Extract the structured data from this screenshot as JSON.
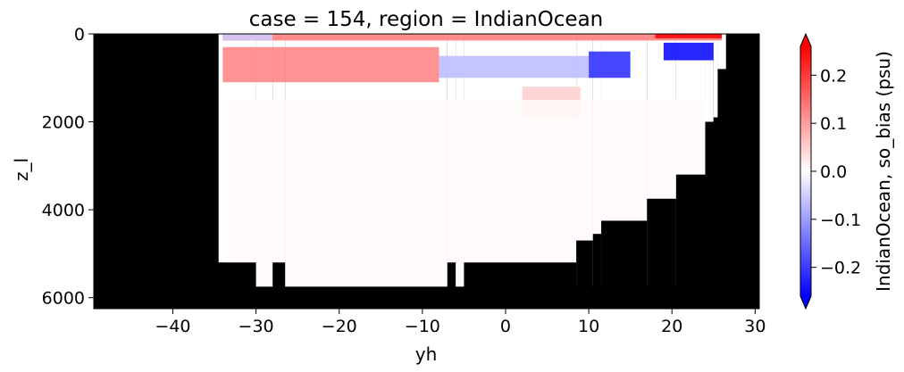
{
  "chart_data": {
    "type": "heatmap",
    "title": "case = 154, region = IndianOcean",
    "xlabel": "yh",
    "ylabel": "z_l",
    "colorbar_label": "IndianOcean, so_bias (psu)",
    "colormap": "bwr",
    "colormap_colors": {
      "low": "#0000ff",
      "mid": "#ffffff",
      "high": "#ff0000",
      "land": "#000000"
    },
    "xlim": [
      -49.5,
      30.5
    ],
    "ylim": [
      6250,
      0
    ],
    "y_inverted": true,
    "vmin": -0.26,
    "vmax": 0.26,
    "colorbar_extend": "both",
    "x_ticks": [
      {
        "value": -40,
        "label": "−40"
      },
      {
        "value": -30,
        "label": "−30"
      },
      {
        "value": -20,
        "label": "−20"
      },
      {
        "value": -10,
        "label": "−10"
      },
      {
        "value": 0,
        "label": "0"
      },
      {
        "value": 10,
        "label": "10"
      },
      {
        "value": 20,
        "label": "20"
      },
      {
        "value": 30,
        "label": "30"
      }
    ],
    "y_ticks": [
      {
        "value": 0,
        "label": "0"
      },
      {
        "value": 2000,
        "label": "2000"
      },
      {
        "value": 4000,
        "label": "4000"
      },
      {
        "value": 6000,
        "label": "6000"
      }
    ],
    "colorbar_ticks": [
      {
        "value": 0.2,
        "label": "0.2"
      },
      {
        "value": 0.1,
        "label": "0.1"
      },
      {
        "value": 0.0,
        "label": "0.0"
      },
      {
        "value": -0.1,
        "label": "−0.1"
      },
      {
        "value": -0.2,
        "label": "−0.2"
      }
    ],
    "ocean_bottom_depth_m": [
      {
        "x": -34.5,
        "depth": 5200
      },
      {
        "x": -30.0,
        "depth": 5750
      },
      {
        "x": -28.0,
        "depth": 5200
      },
      {
        "x": -26.5,
        "depth": 5750
      },
      {
        "x": -7.0,
        "depth": 5200
      },
      {
        "x": -6.0,
        "depth": 5750
      },
      {
        "x": -5.0,
        "depth": 5200
      },
      {
        "x": 8.5,
        "depth": 4700
      },
      {
        "x": 10.5,
        "depth": 4550
      },
      {
        "x": 11.5,
        "depth": 4250
      },
      {
        "x": 17.0,
        "depth": 3750
      },
      {
        "x": 20.5,
        "depth": 3200
      },
      {
        "x": 24.0,
        "depth": 2000
      },
      {
        "x": 25.0,
        "depth": 1900
      },
      {
        "x": 25.5,
        "depth": 800
      },
      {
        "x": 26.5,
        "depth": 0
      }
    ],
    "bias_features": [
      {
        "region": "surface band",
        "x_range": [
          -34,
          26
        ],
        "depth_range": [
          0,
          150
        ],
        "value": 0.14
      },
      {
        "region": "surface maximum",
        "x_range": [
          18,
          26
        ],
        "depth_range": [
          0,
          100
        ],
        "value": 0.26
      },
      {
        "region": "southern surface",
        "x_range": [
          -34,
          -28
        ],
        "depth_range": [
          0,
          150
        ],
        "value": -0.05
      },
      {
        "region": "subsurface positive tongue",
        "x_range": [
          -34,
          -8
        ],
        "depth_range": [
          300,
          1100
        ],
        "value": 0.13
      },
      {
        "region": "mid-depth negative",
        "x_range": [
          -8,
          10
        ],
        "depth_range": [
          500,
          1000
        ],
        "value": -0.07
      },
      {
        "region": "negative core",
        "x_range": [
          10,
          15
        ],
        "depth_range": [
          400,
          1000
        ],
        "value": -0.22
      },
      {
        "region": "northern negative",
        "x_range": [
          19,
          25
        ],
        "depth_range": [
          200,
          600
        ],
        "value": -0.26
      },
      {
        "region": "deep positive near 8N",
        "x_range": [
          2,
          9
        ],
        "depth_range": [
          1200,
          1900
        ],
        "value": 0.05
      },
      {
        "region": "deep water",
        "x_range": [
          -34,
          24
        ],
        "depth_range": [
          1500,
          5750
        ],
        "value": 0.005
      }
    ]
  }
}
